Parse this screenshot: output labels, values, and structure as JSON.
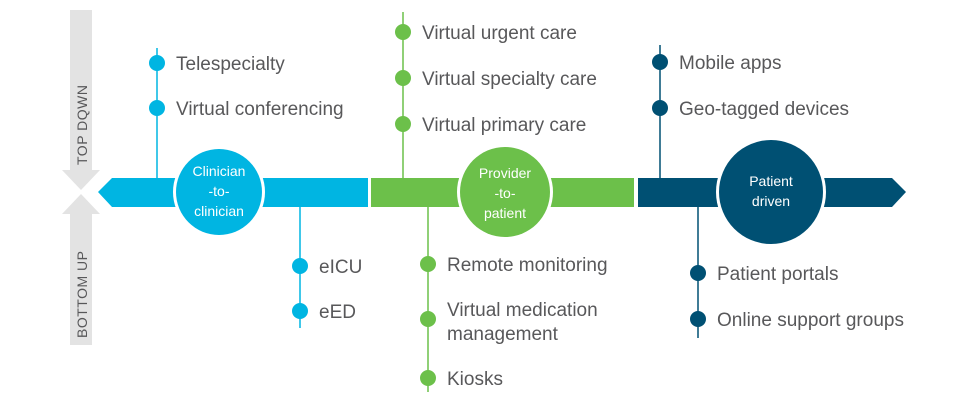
{
  "side_labels": {
    "top": "TOP DQWN",
    "bottom": "BOTTOM UP"
  },
  "colors": {
    "clinician": "#00b5e2",
    "provider": "#6cc04a",
    "patient": "#005073",
    "side": "#e3e3e3",
    "text": "#58585a"
  },
  "groups": [
    {
      "key": "clinician",
      "center": [
        "Clinician",
        "-to-",
        "clinician"
      ],
      "top_items": [
        "Telespecialty",
        "Virtual conferencing"
      ],
      "bottom_items": [
        "eICU",
        "eED"
      ]
    },
    {
      "key": "provider",
      "center": [
        "Provider",
        "-to-",
        "patient"
      ],
      "top_items": [
        "Virtual urgent care",
        "Virtual specialty care",
        "Virtual primary care"
      ],
      "bottom_items": [
        "Remote monitoring",
        "Virtual medication management",
        "Kiosks"
      ]
    },
    {
      "key": "patient",
      "center": [
        "Patient",
        "driven"
      ],
      "top_items": [
        "Mobile apps",
        "Geo-tagged devices"
      ],
      "bottom_items": [
        "Patient portals",
        "Online support groups"
      ]
    }
  ]
}
